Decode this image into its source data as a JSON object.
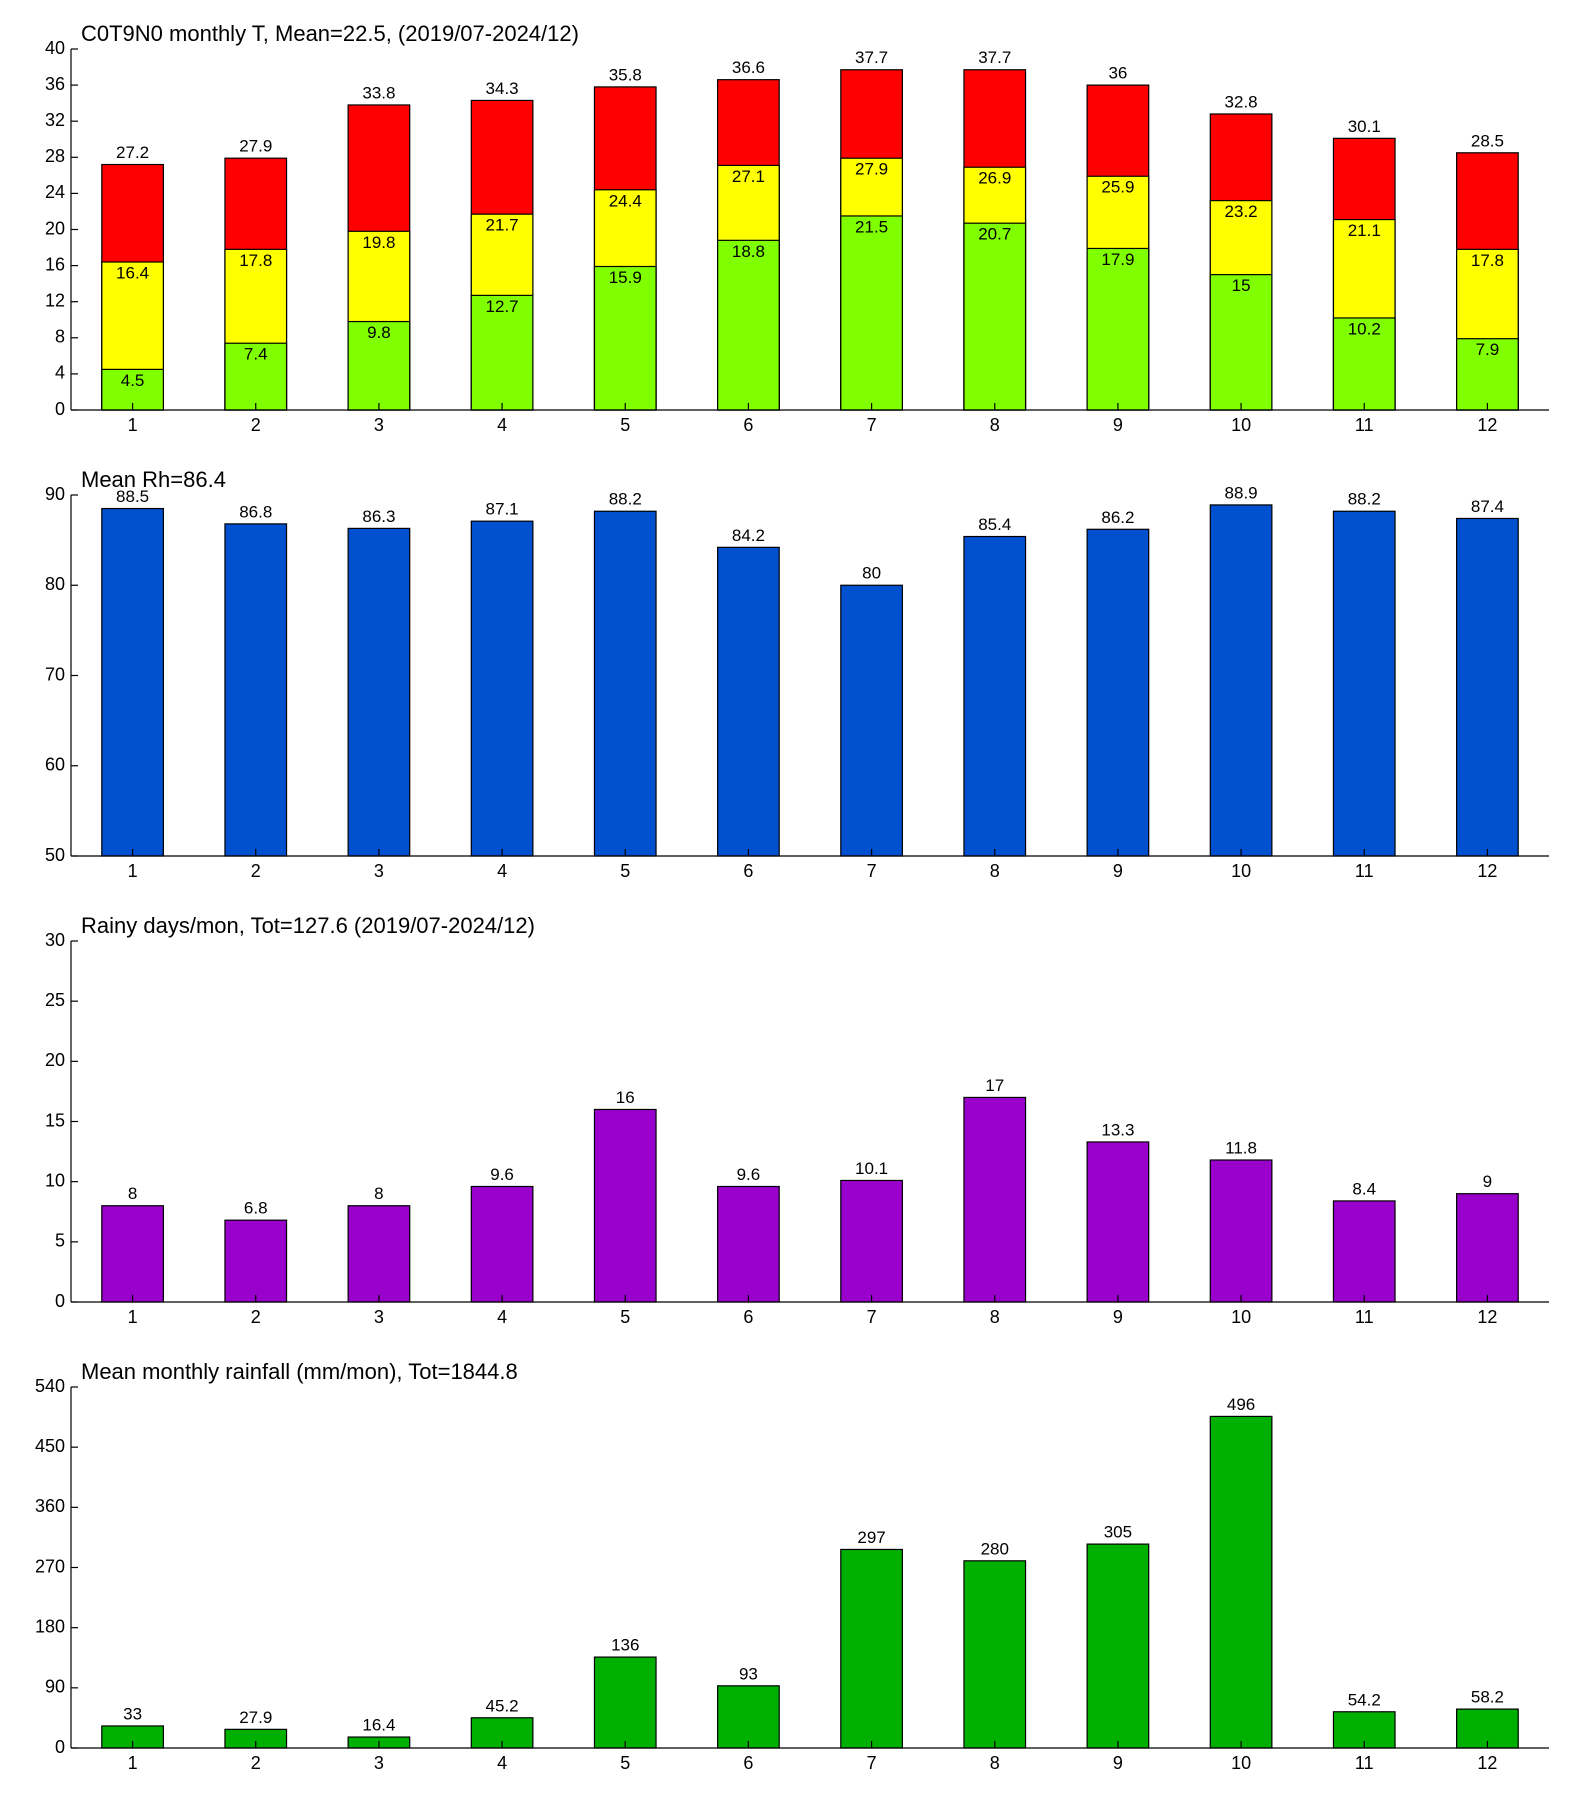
{
  "chart_data": [
    {
      "type": "bar",
      "title": "C0T9N0 monthly T, Mean=22.5, (2019/07-2024/12)",
      "categories": [
        "1",
        "2",
        "3",
        "4",
        "5",
        "6",
        "7",
        "8",
        "9",
        "10",
        "11",
        "12"
      ],
      "series": [
        {
          "color": "#ff0000",
          "values": [
            27.2,
            27.9,
            33.8,
            34.3,
            35.8,
            36.6,
            37.7,
            37.7,
            36,
            32.8,
            30.1,
            28.5
          ]
        },
        {
          "color": "#ffff00",
          "values": [
            16.4,
            17.8,
            19.8,
            21.7,
            24.4,
            27.1,
            27.9,
            26.9,
            25.9,
            23.2,
            21.1,
            17.8
          ]
        },
        {
          "color": "#80ff00",
          "values": [
            4.5,
            7.4,
            9.8,
            12.7,
            15.9,
            18.8,
            21.5,
            20.7,
            17.9,
            15,
            10.2,
            7.9
          ]
        }
      ],
      "ylim": [
        0,
        40
      ],
      "yticks": [
        0,
        4,
        8,
        12,
        16,
        20,
        24,
        28,
        32,
        36,
        40
      ]
    },
    {
      "type": "bar",
      "title": "Mean Rh=86.4",
      "categories": [
        "1",
        "2",
        "3",
        "4",
        "5",
        "6",
        "7",
        "8",
        "9",
        "10",
        "11",
        "12"
      ],
      "values": [
        88.5,
        86.8,
        86.3,
        87.1,
        88.2,
        84.2,
        80,
        85.4,
        86.2,
        88.9,
        88.2,
        87.4
      ],
      "color": "#0050d0",
      "ylim": [
        50,
        90
      ],
      "yticks": [
        50,
        60,
        70,
        80,
        90
      ]
    },
    {
      "type": "bar",
      "title": "Rainy days/mon, Tot=127.6 (2019/07-2024/12)",
      "categories": [
        "1",
        "2",
        "3",
        "4",
        "5",
        "6",
        "7",
        "8",
        "9",
        "10",
        "11",
        "12"
      ],
      "values": [
        8,
        6.8,
        8,
        9.6,
        16,
        9.6,
        10.1,
        17,
        13.3,
        11.8,
        8.4,
        9
      ],
      "color": "#9900cc",
      "ylim": [
        0,
        30
      ],
      "yticks": [
        0,
        5,
        10,
        15,
        20,
        25,
        30
      ]
    },
    {
      "type": "bar",
      "title": "Mean monthly rainfall (mm/mon), Tot=1844.8",
      "categories": [
        "1",
        "2",
        "3",
        "4",
        "5",
        "6",
        "7",
        "8",
        "9",
        "10",
        "11",
        "12"
      ],
      "values": [
        33,
        27.9,
        16.4,
        45.2,
        136,
        93,
        297,
        280,
        305,
        496,
        54.2,
        58.2
      ],
      "color": "#00b000",
      "ylim": [
        0,
        540
      ],
      "yticks": [
        0,
        90,
        180,
        270,
        360,
        450,
        540
      ]
    }
  ]
}
